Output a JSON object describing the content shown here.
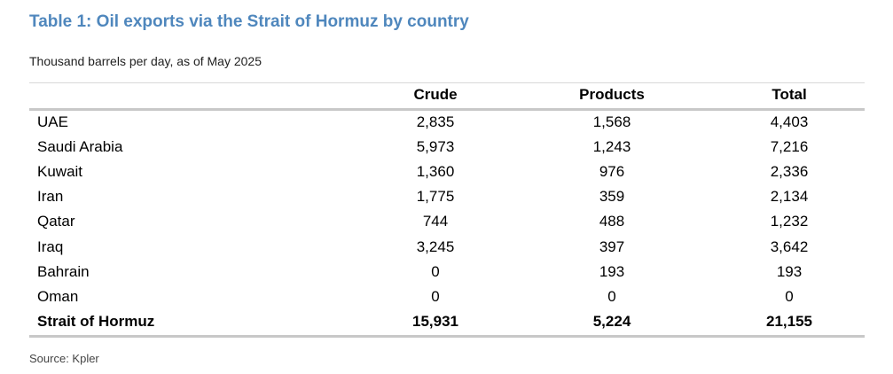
{
  "title": "Table 1: Oil exports via the Strait of Hormuz by country",
  "subtitle": "Thousand barrels per day, as of May 2025",
  "table": {
    "columns": [
      "Crude",
      "Products",
      "Total"
    ],
    "rows": [
      [
        "UAE",
        "2,835",
        "1,568",
        "4,403"
      ],
      [
        "Saudi Arabia",
        "5,973",
        "1,243",
        "7,216"
      ],
      [
        "Kuwait",
        "1,360",
        "976",
        "2,336"
      ],
      [
        "Iran",
        "1,775",
        "359",
        "2,134"
      ],
      [
        "Qatar",
        "744",
        "488",
        "1,232"
      ],
      [
        "Iraq",
        "3,245",
        "397",
        "3,642"
      ],
      [
        "Bahrain",
        "0",
        "193",
        "193"
      ],
      [
        "Oman",
        "0",
        "0",
        "0"
      ]
    ],
    "total": [
      "Strait of Hormuz",
      "15,931",
      "5,224",
      "21,155"
    ]
  },
  "source": "Source: Kpler"
}
